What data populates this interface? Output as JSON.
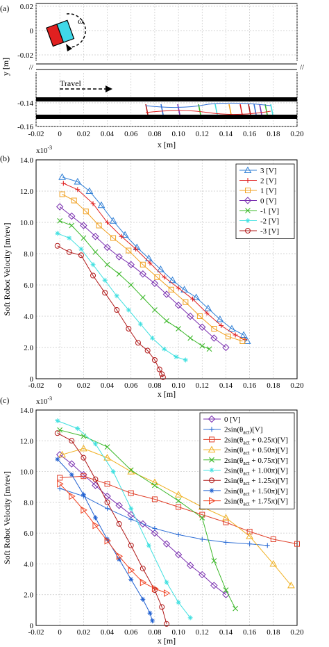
{
  "panels": {
    "a": {
      "label": "(a)",
      "x_axis_label": "x [m]",
      "y_axis_label": "y [m]",
      "travel_label": "Travel",
      "omega_label": "ω",
      "xticks": [
        -0.02,
        0,
        0.02,
        0.04,
        0.06,
        0.08,
        0.1,
        0.12,
        0.14,
        0.16,
        0.18,
        0.2
      ],
      "xtick_labels": [
        "-0.02",
        "0",
        "0.02",
        "0.04",
        "0.06",
        "0.08",
        "0.10",
        "0.12",
        "0.14",
        "0.16",
        "0.18",
        "0.20"
      ],
      "upper_ytick_labels": [
        "0.02",
        "0",
        "-0.02"
      ],
      "lower_ytick_labels": [
        "-0.14",
        "-0.16"
      ]
    },
    "b": {
      "label": "(b)",
      "exp_label": "x10",
      "exp_power": "-3"
    },
    "c": {
      "label": "(c)",
      "exp_label": "x10",
      "exp_power": "-3"
    }
  },
  "colors": {
    "s3": "#2f7fd6",
    "s2": "#e02020",
    "s1": "#f0a020",
    "s0": "#7a2fb0",
    "sm1": "#3cb82a",
    "sm2": "#40e0e0",
    "sm3": "#b01818",
    "c0": "#7a2fb0",
    "c1": "#2f6fd6",
    "c2": "#e0402a",
    "c3": "#f0b020",
    "c4": "#3cb82a",
    "c5": "#40e0e0",
    "c6": "#b01818",
    "c7": "#1f5fd0",
    "c8": "#f04020"
  },
  "chart_data": [
    {
      "type": "line",
      "xlabel": "x [m]",
      "ylabel": "Soft Robot Velocity [m/rev]",
      "xlim": [
        -0.02,
        0.2
      ],
      "ylim": [
        0,
        14
      ],
      "xticks": [
        -0.02,
        0,
        0.02,
        0.04,
        0.06,
        0.08,
        0.1,
        0.12,
        0.14,
        0.16,
        0.18,
        0.2
      ],
      "xtick_labels": [
        "-0.02",
        "0",
        "0.02",
        "0.04",
        "0.06",
        "0.08",
        "0.10",
        "0.12",
        "0.14",
        "0.16",
        "0.18",
        "0.20"
      ],
      "yticks": [
        0,
        2,
        4,
        6,
        8,
        10,
        12,
        14
      ],
      "ytick_labels": [
        "0",
        "2.0",
        "4.0",
        "6.0",
        "8.0",
        "10.0",
        "12.0",
        "14.0"
      ],
      "y_multiplier": "x10-3",
      "legend_position": "top-right",
      "grid": true,
      "series": [
        {
          "name": "3 [V]",
          "color": "s3",
          "marker": "triangle",
          "x": [
            0.002,
            0.015,
            0.025,
            0.035,
            0.045,
            0.055,
            0.065,
            0.075,
            0.085,
            0.095,
            0.105,
            0.115,
            0.125,
            0.135,
            0.145,
            0.155,
            0.158
          ],
          "y": [
            12.9,
            12.6,
            12.0,
            11.1,
            10.1,
            9.2,
            8.4,
            7.7,
            7.0,
            6.3,
            5.7,
            5.2,
            4.5,
            3.8,
            3.2,
            2.8,
            2.4
          ]
        },
        {
          "name": "2 [V]",
          "color": "s2",
          "marker": "plus",
          "x": [
            0.003,
            0.015,
            0.028,
            0.04,
            0.052,
            0.064,
            0.076,
            0.088,
            0.1,
            0.112,
            0.124,
            0.136,
            0.148,
            0.156
          ],
          "y": [
            12.5,
            12.1,
            11.2,
            10.0,
            9.1,
            8.3,
            7.4,
            6.5,
            5.8,
            5.1,
            4.2,
            3.4,
            2.8,
            2.5
          ]
        },
        {
          "name": "1 [V]",
          "color": "s1",
          "marker": "square",
          "x": [
            0.002,
            0.012,
            0.022,
            0.033,
            0.045,
            0.058,
            0.07,
            0.082,
            0.094,
            0.106,
            0.118,
            0.13,
            0.142,
            0.154
          ],
          "y": [
            11.8,
            11.4,
            10.7,
            9.8,
            9.0,
            8.2,
            7.3,
            6.5,
            5.7,
            4.9,
            4.0,
            3.2,
            2.7,
            2.4
          ]
        },
        {
          "name": "0 [V]",
          "color": "s0",
          "marker": "diamond",
          "x": [
            0.0,
            0.01,
            0.02,
            0.03,
            0.04,
            0.05,
            0.06,
            0.07,
            0.08,
            0.09,
            0.1,
            0.11,
            0.12,
            0.13,
            0.14
          ],
          "y": [
            11.0,
            10.4,
            9.8,
            9.1,
            8.4,
            7.8,
            7.3,
            6.7,
            6.1,
            5.4,
            4.7,
            4.0,
            3.3,
            2.6,
            2.0
          ]
        },
        {
          "name": "-1 [V]",
          "color": "sm1",
          "marker": "x",
          "x": [
            0.0,
            0.01,
            0.02,
            0.03,
            0.04,
            0.05,
            0.06,
            0.07,
            0.08,
            0.09,
            0.1,
            0.11,
            0.12,
            0.126
          ],
          "y": [
            10.1,
            9.8,
            9.0,
            8.1,
            7.3,
            6.7,
            6.0,
            5.2,
            4.4,
            3.7,
            3.2,
            2.6,
            2.1,
            1.9
          ]
        },
        {
          "name": "-2 [V]",
          "color": "sm2",
          "marker": "star",
          "x": [
            -0.002,
            0.008,
            0.018,
            0.028,
            0.038,
            0.048,
            0.058,
            0.068,
            0.078,
            0.088,
            0.098,
            0.106
          ],
          "y": [
            9.3,
            9.0,
            8.3,
            7.3,
            6.3,
            5.3,
            4.4,
            3.5,
            2.6,
            1.9,
            1.4,
            1.2
          ]
        },
        {
          "name": "-3 [V]",
          "color": "sm3",
          "marker": "circle",
          "x": [
            -0.002,
            0.008,
            0.018,
            0.028,
            0.038,
            0.048,
            0.058,
            0.066,
            0.074,
            0.08,
            0.084,
            0.086,
            0.087
          ],
          "y": [
            8.5,
            8.1,
            7.9,
            6.6,
            5.5,
            4.4,
            3.2,
            2.3,
            1.8,
            1.2,
            0.6,
            0.3,
            0.1
          ]
        }
      ]
    },
    {
      "type": "line",
      "xlabel": "x [m]",
      "ylabel": "Soft Robot Velocity [m/rev]",
      "xlim": [
        -0.02,
        0.2
      ],
      "ylim": [
        0,
        14
      ],
      "xticks": [
        -0.02,
        0,
        0.02,
        0.04,
        0.06,
        0.08,
        0.1,
        0.12,
        0.14,
        0.16,
        0.18,
        0.2
      ],
      "xtick_labels": [
        "-0.02",
        "0",
        "0.02",
        "0.04",
        "0.06",
        "0.08",
        "0.10",
        "0.12",
        "0.14",
        "0.16",
        "0.18",
        "0.20"
      ],
      "yticks": [
        0,
        2,
        4,
        6,
        8,
        10,
        12,
        14
      ],
      "ytick_labels": [
        "0",
        "2.0",
        "4.0",
        "6.0",
        "8.0",
        "10.0",
        "12.0",
        "14.0"
      ],
      "y_multiplier": "x10-3",
      "legend_position": "top-right",
      "grid": true,
      "series": [
        {
          "name": "0 [V]",
          "legend_base": "0 [V]",
          "color": "c0",
          "marker": "diamond",
          "x": [
            0.0,
            0.01,
            0.02,
            0.03,
            0.04,
            0.05,
            0.06,
            0.07,
            0.08,
            0.09,
            0.1,
            0.11,
            0.12,
            0.13,
            0.14
          ],
          "y": [
            11.1,
            10.5,
            9.8,
            9.1,
            8.4,
            7.8,
            7.2,
            6.6,
            6.0,
            5.3,
            4.6,
            3.9,
            3.3,
            2.6,
            2.0
          ]
        },
        {
          "name": "2sin(θact)[V]",
          "legend_base": "2sin(θ",
          "legend_sub": "act",
          "legend_tail": ")[V]",
          "color": "c1",
          "marker": "plus",
          "x": [
            0.0,
            0.02,
            0.04,
            0.06,
            0.08,
            0.1,
            0.12,
            0.14,
            0.16,
            0.175
          ],
          "y": [
            8.9,
            8.4,
            7.6,
            6.9,
            6.3,
            5.9,
            5.6,
            5.4,
            5.3,
            5.2
          ]
        },
        {
          "name": "2sin(θact + 0.25π)[V]",
          "legend_base": "2sin(θ",
          "legend_sub": "act",
          "legend_tail": " + 0.25π)[V]",
          "color": "c2",
          "marker": "square",
          "x": [
            0.0,
            0.02,
            0.04,
            0.06,
            0.08,
            0.1,
            0.12,
            0.14,
            0.16,
            0.18,
            0.2
          ],
          "y": [
            9.6,
            9.7,
            9.2,
            8.6,
            8.2,
            7.7,
            7.2,
            6.7,
            6.1,
            5.6,
            5.3
          ]
        },
        {
          "name": "2sin(θact + 0.50π)[V]",
          "legend_base": "2sin(θ",
          "legend_sub": "act",
          "legend_tail": " + 0.50π)[V]",
          "color": "c3",
          "marker": "triangle",
          "x": [
            0.002,
            0.02,
            0.04,
            0.06,
            0.08,
            0.1,
            0.12,
            0.14,
            0.16,
            0.18,
            0.195
          ],
          "y": [
            11.1,
            11.5,
            10.9,
            10.0,
            9.3,
            8.5,
            7.7,
            7.0,
            5.8,
            4.0,
            2.6
          ]
        },
        {
          "name": "2sin(θact + 0.75π)[V]",
          "legend_base": "2sin(θ",
          "legend_sub": "act",
          "legend_tail": " + 0.75π)[V]",
          "color": "c4",
          "marker": "x",
          "x": [
            0.0,
            0.02,
            0.04,
            0.06,
            0.08,
            0.1,
            0.12,
            0.13,
            0.14,
            0.148
          ],
          "y": [
            12.7,
            12.3,
            11.6,
            10.1,
            9.1,
            8.1,
            7.0,
            4.2,
            2.3,
            1.1
          ]
        },
        {
          "name": "2sin(θact + 1.00π)[V]",
          "legend_base": "2sin(θ",
          "legend_sub": "act",
          "legend_tail": " + 1.00π)[V]",
          "color": "c5",
          "marker": "star",
          "x": [
            -0.002,
            0.015,
            0.03,
            0.045,
            0.06,
            0.075,
            0.09,
            0.1,
            0.11
          ],
          "y": [
            13.3,
            12.8,
            11.8,
            10.0,
            7.6,
            5.2,
            2.8,
            1.5,
            0.5
          ]
        },
        {
          "name": "2sin(θact + 1.25π)[V]",
          "legend_base": "2sin(θ",
          "legend_sub": "act",
          "legend_tail": " + 1.25π)[V]",
          "color": "c6",
          "marker": "circle",
          "x": [
            -0.002,
            0.01,
            0.02,
            0.03,
            0.04,
            0.05,
            0.06,
            0.07,
            0.08,
            0.086,
            0.09
          ],
          "y": [
            12.5,
            12.0,
            10.9,
            9.5,
            8.0,
            6.6,
            5.2,
            3.7,
            2.3,
            1.2,
            0.1
          ]
        },
        {
          "name": "2sin(θact + 1.50π)[V]",
          "legend_base": "2sin(θ",
          "legend_sub": "act",
          "legend_tail": " + 1.50π)[V]",
          "color": "c7",
          "marker": "star",
          "x": [
            -0.002,
            0.01,
            0.02,
            0.03,
            0.04,
            0.05,
            0.06,
            0.07,
            0.076,
            0.078
          ],
          "y": [
            10.8,
            9.8,
            8.5,
            7.0,
            5.6,
            4.3,
            3.0,
            1.7,
            0.8,
            0.3
          ]
        },
        {
          "name": "2sin(θact + 1.75π)[V]",
          "legend_base": "2sin(θ",
          "legend_sub": "act",
          "legend_tail": " + 1.75π)[V]",
          "color": "c8",
          "marker": "triangle-right",
          "x": [
            0.0,
            0.01,
            0.02,
            0.03,
            0.04,
            0.05,
            0.06,
            0.07,
            0.08,
            0.09
          ],
          "y": [
            9.2,
            8.4,
            7.5,
            6.5,
            5.5,
            4.5,
            3.6,
            2.8,
            2.4,
            2.1
          ]
        }
      ]
    }
  ]
}
